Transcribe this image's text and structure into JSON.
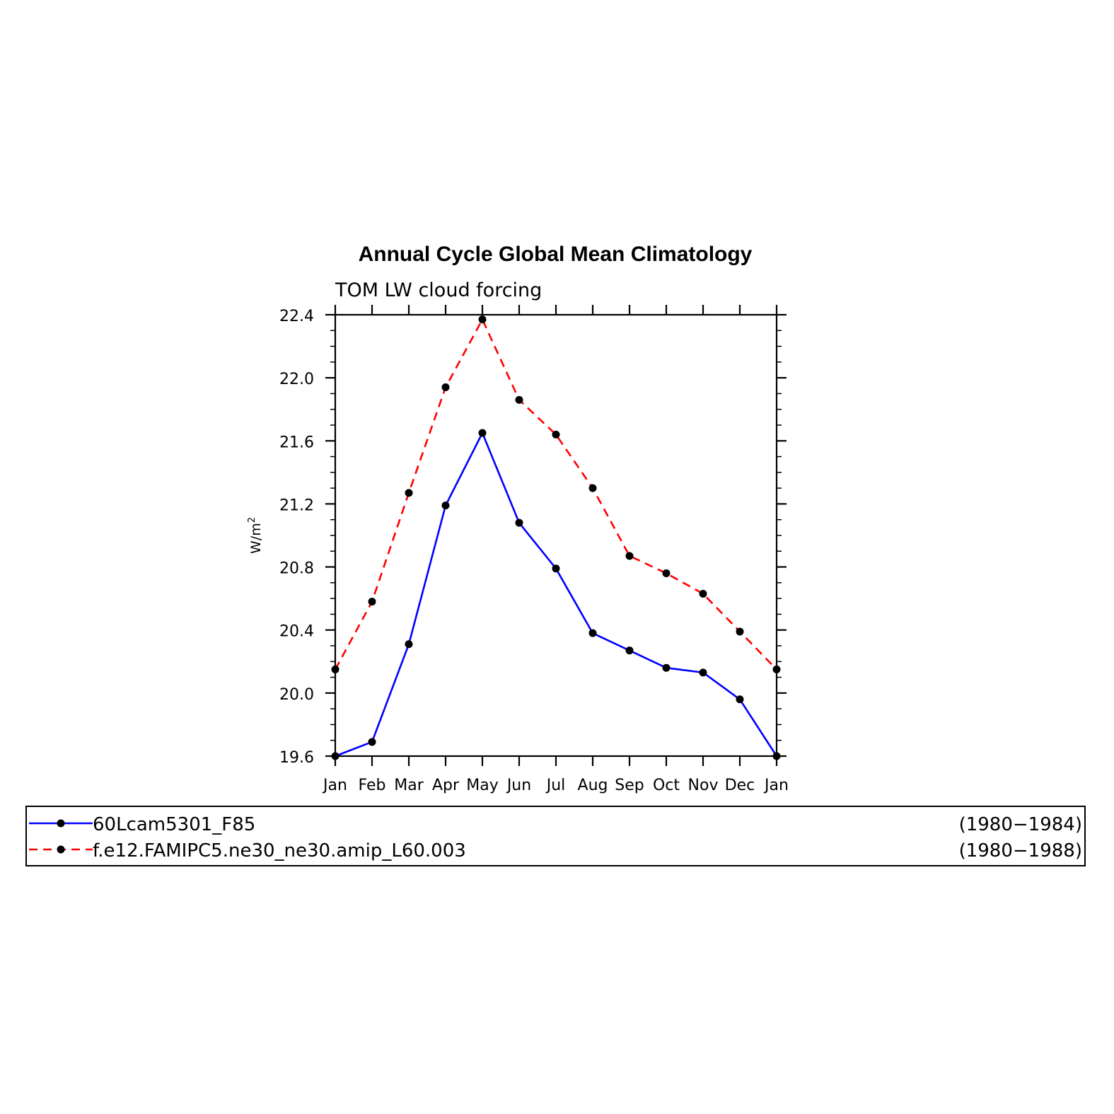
{
  "chart_data": {
    "type": "line",
    "title": "Annual Cycle Global Mean Climatology",
    "subtitle": "TOM LW cloud forcing",
    "ylabel_base": "W/m",
    "ylabel_sup": "2",
    "ylim": [
      19.6,
      22.4
    ],
    "yticks": [
      "19.6",
      "20.0",
      "20.4",
      "20.8",
      "21.2",
      "21.6",
      "22.0",
      "22.4"
    ],
    "yticks_values": [
      19.6,
      20.0,
      20.4,
      20.8,
      21.2,
      21.6,
      22.0,
      22.4
    ],
    "categories": [
      "Jan",
      "Feb",
      "Mar",
      "Apr",
      "May",
      "Jun",
      "Jul",
      "Aug",
      "Sep",
      "Oct",
      "Nov",
      "Dec",
      "Jan"
    ],
    "series": [
      {
        "name": "60Lcam5301_F85",
        "years": "(1980−1984)",
        "color": "#0000ff",
        "dash": "solid",
        "values": [
          19.6,
          19.69,
          20.31,
          21.19,
          21.65,
          21.08,
          20.79,
          20.38,
          20.27,
          20.16,
          20.13,
          19.96,
          19.6
        ]
      },
      {
        "name": "f.e12.FAMIPC5.ne30_ne30.amip_L60.003",
        "years": "(1980−1988)",
        "color": "#ff0000",
        "dash": "dashed",
        "values": [
          20.15,
          20.58,
          21.27,
          21.94,
          22.37,
          21.86,
          21.64,
          21.3,
          20.87,
          20.76,
          20.63,
          20.39,
          20.15
        ]
      }
    ],
    "legend_placement": "bottom",
    "grid": false
  }
}
